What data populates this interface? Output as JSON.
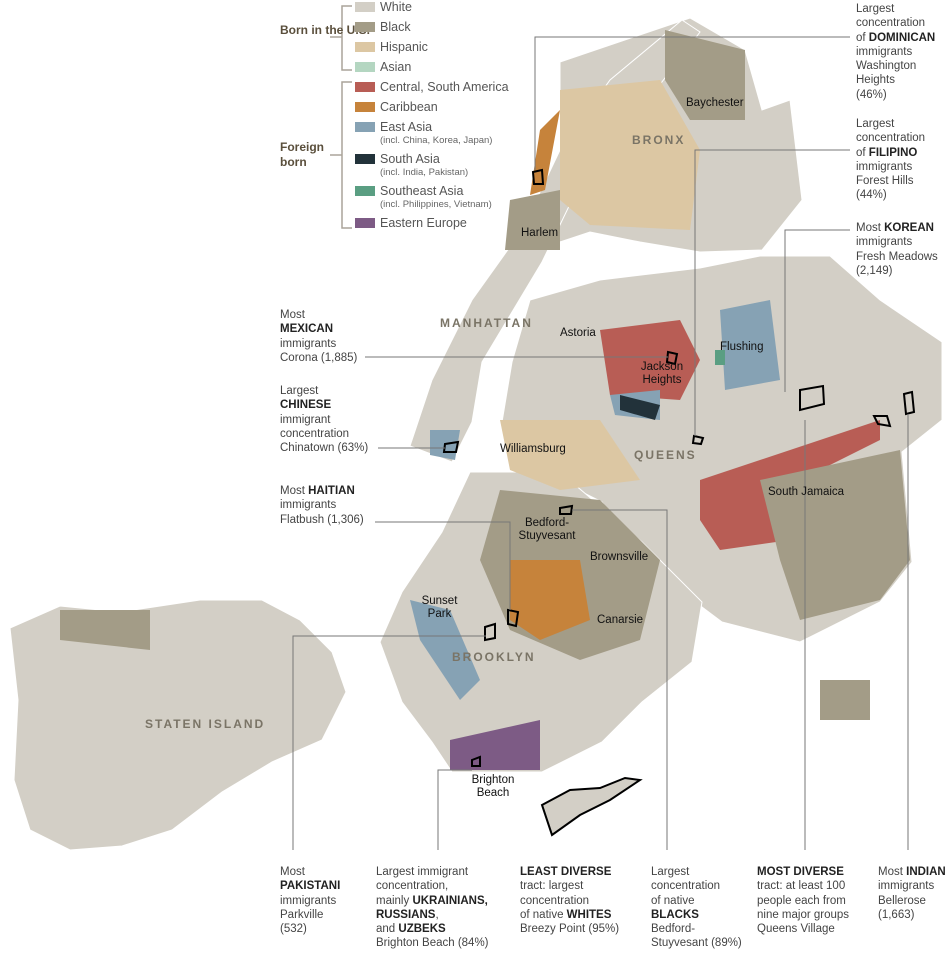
{
  "colors": {
    "white": "#d3cfc6",
    "black": "#a39c87",
    "hispanic": "#dcc7a3",
    "asian": "#b4d6c1",
    "central_south_america": "#b85d55",
    "caribbean": "#c6833b",
    "east_asia": "#86a2b4",
    "south_asia": "#22323a",
    "southeast_asia": "#5a9e82",
    "eastern_europe": "#7d5b85",
    "park": "#e8e8e5"
  },
  "legend": {
    "born_us_label": "Born in the U.S.",
    "foreign_label": "Foreign born",
    "items": [
      {
        "label": "White",
        "sub": ""
      },
      {
        "label": "Black",
        "sub": ""
      },
      {
        "label": "Hispanic",
        "sub": ""
      },
      {
        "label": "Asian",
        "sub": ""
      },
      {
        "label": "Central, South America",
        "sub": ""
      },
      {
        "label": "Caribbean",
        "sub": ""
      },
      {
        "label": "East Asia",
        "sub": "(incl. China, Korea, Japan)"
      },
      {
        "label": "South Asia",
        "sub": "(incl. India, Pakistan)"
      },
      {
        "label": "Southeast Asia",
        "sub": "(incl. Philippines, Vietnam)"
      },
      {
        "label": "Eastern Europe",
        "sub": ""
      }
    ]
  },
  "boroughs": {
    "bronx": "BRONX",
    "manhattan": "MANHATTAN",
    "queens": "QUEENS",
    "brooklyn": "BROOKLYN",
    "staten_island": "STATEN ISLAND"
  },
  "neighborhoods": {
    "baychester": "Baychester",
    "harlem": "Harlem",
    "astoria": "Astoria",
    "jackson_heights": "Jackson Heights",
    "flushing": "Flushing",
    "williamsburg": "Williamsburg",
    "south_jamaica": "South Jamaica",
    "bed_stuy": "Bedford-Stuyvesant",
    "brownsville": "Brownsville",
    "sunset_park": "Sunset Park",
    "canarsie": "Canarsie",
    "brighton_beach": "Brighton Beach"
  },
  "annotations": {
    "dominican": [
      "Largest",
      "concentration",
      "of ",
      "DOMINICAN",
      "immigrants",
      "Washington",
      "Heights",
      "(46%)"
    ],
    "filipino": [
      "Largest",
      "concentration",
      "of ",
      "FILIPINO",
      "immigrants",
      "Forest Hills",
      "(44%)"
    ],
    "korean": [
      "Most ",
      "KOREAN",
      "immigrants",
      "Fresh Meadows",
      "(2,149)"
    ],
    "mexican": [
      "Most",
      "MEXICAN",
      "immigrants",
      "Corona (1,885)"
    ],
    "chinese": [
      "Largest",
      "CHINESE",
      "immigrant",
      "concentration",
      "Chinatown (63%)"
    ],
    "haitian": [
      "Most ",
      "HAITIAN",
      "immigrants",
      "Flatbush (1,306)"
    ],
    "pakistani": [
      "Most",
      "PAKISTANI",
      "immigrants",
      "Parkville",
      "(532)"
    ],
    "ukrainians": [
      "Largest immigrant",
      "concentration,",
      "mainly ",
      "UKRAINIANS,",
      "RUSSIANS",
      ",",
      "and ",
      "UZBEKS",
      "Brighton Beach (84%)"
    ],
    "least_diverse": [
      "LEAST DIVERSE",
      "tract: largest",
      "concentration",
      "of native ",
      "WHITES",
      "Breezy Point (95%)"
    ],
    "blacks": [
      "Largest",
      "concentration",
      "of native",
      "BLACKS",
      "Bedford-",
      "Stuyvesant (89%)"
    ],
    "most_diverse": [
      "MOST DIVERSE",
      "tract: at least 100",
      "people each from",
      "nine major groups",
      "Queens Village"
    ],
    "indian": [
      "Most ",
      "INDIAN",
      "immigrants",
      "Bellerose",
      "(1,663)"
    ]
  }
}
